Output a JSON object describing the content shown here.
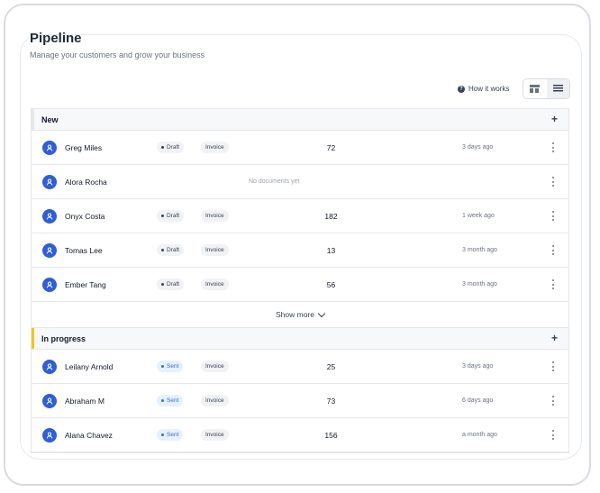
{
  "header": {
    "title": "Pipeline",
    "subtitle": "Manage your customers and grow your business",
    "how_it_works": "How it works"
  },
  "view_toggle": {
    "options": [
      "board-view",
      "list-view"
    ],
    "active": "list-view"
  },
  "colors": {
    "accent": "#2f5fd3",
    "in_progress": "#f5c518",
    "sent": "#2f6de0"
  },
  "groups": [
    {
      "label": "New",
      "add_label": "+",
      "rows": [
        {
          "name": "Greg Miles",
          "status": "Draft",
          "document": "Invoice",
          "count": "72",
          "updated": "3 days ago"
        },
        {
          "name": "Alora Rocha",
          "empty": "No documents yet",
          "updated": ""
        },
        {
          "name": "Onyx Costa",
          "status": "Draft",
          "document": "Invoice",
          "count": "182",
          "updated": "1 week ago"
        },
        {
          "name": "Tomas Lee",
          "status": "Draft",
          "document": "Invoice",
          "count": "13",
          "updated": "3 month ago"
        },
        {
          "name": "Ember Tang",
          "status": "Draft",
          "document": "Invoice",
          "count": "56",
          "updated": "3 month ago"
        }
      ],
      "show_more": "Show more"
    },
    {
      "label": "In progress",
      "add_label": "+",
      "rows": [
        {
          "name": "Leilany Arnold",
          "status": "Sent",
          "document": "Invoice",
          "count": "25",
          "updated": "3 days ago"
        },
        {
          "name": "Abraham M",
          "status": "Sent",
          "document": "Invoice",
          "count": "73",
          "updated": "6 days ago"
        },
        {
          "name": "Alana Chavez",
          "status": "Sent",
          "document": "Invoice",
          "count": "156",
          "updated": "a month ago"
        }
      ]
    }
  ]
}
